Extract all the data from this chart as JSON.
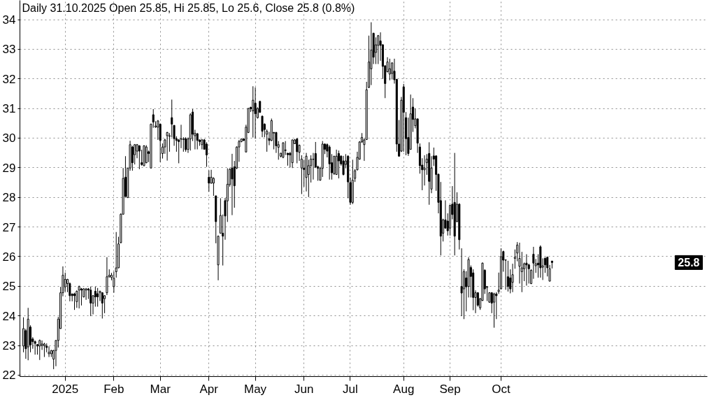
{
  "chart_data": {
    "type": "candlestick",
    "title": "Daily 31.10.2025 Open 25.85, Hi 25.85, Lo 25.6, Close 25.8 (0.8%)",
    "categories": [
      null,
      null,
      null,
      null,
      null,
      null,
      null,
      null,
      null,
      null,
      null,
      null,
      null,
      null,
      null,
      null,
      null,
      null,
      "2025",
      null,
      null,
      null,
      null,
      null,
      null,
      null,
      null,
      null,
      null,
      null,
      null,
      null,
      null,
      null,
      null,
      null,
      null,
      null,
      null,
      "Feb",
      null,
      null,
      null,
      null,
      null,
      null,
      null,
      null,
      null,
      null,
      null,
      null,
      null,
      null,
      null,
      null,
      null,
      null,
      null,
      "Mar",
      null,
      null,
      null,
      null,
      null,
      null,
      null,
      null,
      null,
      null,
      null,
      null,
      null,
      null,
      null,
      null,
      null,
      null,
      null,
      null,
      "Apr",
      null,
      null,
      null,
      null,
      null,
      null,
      null,
      null,
      null,
      null,
      null,
      null,
      null,
      null,
      null,
      null,
      null,
      null,
      null,
      "May",
      null,
      null,
      null,
      null,
      null,
      null,
      null,
      null,
      null,
      null,
      null,
      null,
      null,
      null,
      null,
      null,
      null,
      null,
      null,
      null,
      "Jun",
      null,
      null,
      null,
      null,
      null,
      null,
      null,
      null,
      null,
      null,
      null,
      null,
      null,
      null,
      null,
      null,
      null,
      null,
      null,
      "Jul",
      null,
      null,
      null,
      null,
      null,
      null,
      null,
      null,
      null,
      null,
      null,
      null,
      null,
      null,
      null,
      null,
      null,
      null,
      null,
      null,
      null,
      null,
      "Aug",
      null,
      null,
      null,
      null,
      null,
      null,
      null,
      null,
      null,
      null,
      null,
      null,
      null,
      null,
      null,
      null,
      null,
      null,
      null,
      "Sep",
      null,
      null,
      null,
      null,
      null,
      null,
      null,
      null,
      null,
      null,
      null,
      null,
      null,
      null,
      null,
      null,
      null,
      null,
      null,
      null,
      null,
      "Oct",
      null,
      null,
      null,
      null,
      null,
      null,
      null,
      null,
      null,
      null,
      null,
      null,
      null,
      null,
      null,
      null,
      null,
      null,
      null,
      null,
      null,
      null
    ],
    "ohlc": [
      [
        22.98,
        23.95,
        22.77,
        23.57
      ],
      [
        23.5,
        23.56,
        22.55,
        22.89
      ],
      [
        22.95,
        24.27,
        22.5,
        23.89
      ],
      [
        23.62,
        23.68,
        22.77,
        23.02
      ],
      [
        23.22,
        23.28,
        22.89,
        23.13
      ],
      [
        23.13,
        23.17,
        22.69,
        23.07
      ],
      [
        23.03,
        23.05,
        22.69,
        22.98
      ],
      [
        22.98,
        23.2,
        22.51,
        23.17
      ],
      [
        23.0,
        23.17,
        22.85,
        23.05
      ],
      [
        22.99,
        23.09,
        22.61,
        23.05
      ],
      [
        22.98,
        23.07,
        22.77,
        22.93
      ],
      [
        22.72,
        22.97,
        22.61,
        22.77
      ],
      [
        22.72,
        22.85,
        22.61,
        22.83
      ],
      [
        22.54,
        22.85,
        22.2,
        22.83
      ],
      [
        22.83,
        23.18,
        22.3,
        23.17
      ],
      [
        23.17,
        23.97,
        22.93,
        23.89
      ],
      [
        23.57,
        24.98,
        23.56,
        24.78
      ],
      [
        24.78,
        25.67,
        24.66,
        25.37
      ],
      [
        24.98,
        25.46,
        24.82,
        25.23
      ],
      [
        25.09,
        25.25,
        24.8,
        25.23
      ],
      [
        25.09,
        25.13,
        24.49,
        24.68
      ],
      [
        24.74,
        24.75,
        24.49,
        24.68
      ],
      [
        24.74,
        24.78,
        24.2,
        24.68
      ],
      [
        24.48,
        24.86,
        24.27,
        24.83
      ],
      [
        24.87,
        25.02,
        24.25,
        24.99
      ],
      [
        24.91,
        24.94,
        24.35,
        24.87
      ],
      [
        24.64,
        24.94,
        24.62,
        24.91
      ],
      [
        24.87,
        24.94,
        24.54,
        24.91
      ],
      [
        24.91,
        24.94,
        24.57,
        24.87
      ],
      [
        24.87,
        24.99,
        23.99,
        24.43
      ],
      [
        24.43,
        24.7,
        24.05,
        24.68
      ],
      [
        24.83,
        24.99,
        24.31,
        24.64
      ],
      [
        24.75,
        24.94,
        24.31,
        24.64
      ],
      [
        24.78,
        24.85,
        24.5,
        24.83
      ],
      [
        24.78,
        24.8,
        23.91,
        24.43
      ],
      [
        24.58,
        24.7,
        24.09,
        24.68
      ],
      [
        24.78,
        25.98,
        24.7,
        25.32
      ],
      [
        25.32,
        25.57,
        25.29,
        25.37
      ],
      [
        25.29,
        25.45,
        25.2,
        25.37
      ],
      [
        24.99,
        25.49,
        24.78,
        25.27
      ],
      [
        25.49,
        26.83,
        25.29,
        25.62
      ],
      [
        25.62,
        26.67,
        25.61,
        26.43
      ],
      [
        26.47,
        27.46,
        26.45,
        27.43
      ],
      [
        27.43,
        28.99,
        27.42,
        28.64
      ],
      [
        28.68,
        29.39,
        28.01,
        28.03
      ],
      [
        27.99,
        29.0,
        27.98,
        28.99
      ],
      [
        28.99,
        29.91,
        28.9,
        29.78
      ],
      [
        29.7,
        29.74,
        28.9,
        29.17
      ],
      [
        29.44,
        29.8,
        29.11,
        29.78
      ],
      [
        29.56,
        29.8,
        29.32,
        29.78
      ],
      [
        29.74,
        29.76,
        28.95,
        29.56
      ],
      [
        29.17,
        29.61,
        29.07,
        29.11
      ],
      [
        29.07,
        29.76,
        29.05,
        29.74
      ],
      [
        29.17,
        29.76,
        29.15,
        29.7
      ],
      [
        29.54,
        29.58,
        29.19,
        29.48
      ],
      [
        28.99,
        30.49,
        28.98,
        30.47
      ],
      [
        30.79,
        30.98,
        30.35,
        30.54
      ],
      [
        30.37,
        30.57,
        30.35,
        30.41
      ],
      [
        30.37,
        30.61,
        29.94,
        30.58
      ],
      [
        30.47,
        30.49,
        29.19,
        29.92
      ],
      [
        29.48,
        29.82,
        29.31,
        29.7
      ],
      [
        29.7,
        29.98,
        29.47,
        29.94
      ],
      [
        30.08,
        30.21,
        29.24,
        30.19
      ],
      [
        30.06,
        30.17,
        29.54,
        30.08
      ],
      [
        30.69,
        31.3,
        30.03,
        30.47
      ],
      [
        30.43,
        30.44,
        29.74,
        29.98
      ],
      [
        29.98,
        30.06,
        29.54,
        29.92
      ],
      [
        29.94,
        29.97,
        29.15,
        29.88
      ],
      [
        29.96,
        30.45,
        29.66,
        29.98
      ],
      [
        29.95,
        30.03,
        29.54,
        29.97
      ],
      [
        29.98,
        30.03,
        29.54,
        29.61
      ],
      [
        29.62,
        30.02,
        29.5,
        29.97
      ],
      [
        29.97,
        30.84,
        29.58,
        30.79
      ],
      [
        30.88,
        30.98,
        29.9,
        30.13
      ],
      [
        30.08,
        30.28,
        29.62,
        30.16
      ],
      [
        30.15,
        30.17,
        29.62,
        29.92
      ],
      [
        29.94,
        29.95,
        29.74,
        29.88
      ],
      [
        29.78,
        29.97,
        29.62,
        29.94
      ],
      [
        29.94,
        29.97,
        29.61,
        29.62
      ],
      [
        29.8,
        29.86,
        29.03,
        29.43
      ],
      [
        28.68,
        28.91,
        28.19,
        28.48
      ],
      [
        28.48,
        28.93,
        28.46,
        28.68
      ],
      [
        28.48,
        28.68,
        28.05,
        28.64
      ],
      [
        28.05,
        28.06,
        26.45,
        27.18
      ],
      [
        25.72,
        26.71,
        25.2,
        26.69
      ],
      [
        26.79,
        27.97,
        26.79,
        27.39
      ],
      [
        26.79,
        27.42,
        25.7,
        26.69
      ],
      [
        27.89,
        27.98,
        26.57,
        27.37
      ],
      [
        27.88,
        28.98,
        27.17,
        28.44
      ],
      [
        28.43,
        28.98,
        28.36,
        28.95
      ],
      [
        28.99,
        29.47,
        27.4,
        28.62
      ],
      [
        29.03,
        29.23,
        27.65,
        28.39
      ],
      [
        28.99,
        29.72,
        28.95,
        29.7
      ],
      [
        29.7,
        29.94,
        29.2,
        29.88
      ],
      [
        29.88,
        29.98,
        29.86,
        29.97
      ],
      [
        29.97,
        29.98,
        29.9,
        29.92
      ],
      [
        29.53,
        30.45,
        29.52,
        30.37
      ],
      [
        30.19,
        31.02,
        30.17,
        31.0
      ],
      [
        31.04,
        31.06,
        30.88,
        30.99
      ],
      [
        30.92,
        31.75,
        30.02,
        31.28
      ],
      [
        31.18,
        31.71,
        29.98,
        30.82
      ],
      [
        30.69,
        31.04,
        30.66,
        31.0
      ],
      [
        31.24,
        31.26,
        30.85,
        30.87
      ],
      [
        30.74,
        30.76,
        30.03,
        30.23
      ],
      [
        30.47,
        30.5,
        30.03,
        30.29
      ],
      [
        30.13,
        30.29,
        29.54,
        30.23
      ],
      [
        29.98,
        30.21,
        29.76,
        29.92
      ],
      [
        29.92,
        30.66,
        29.9,
        30.59
      ],
      [
        30.17,
        30.21,
        29.62,
        30.19
      ],
      [
        30.19,
        30.21,
        29.5,
        29.74
      ],
      [
        29.69,
        29.9,
        29.27,
        29.78
      ],
      [
        29.39,
        29.5,
        29.35,
        29.49
      ],
      [
        29.35,
        29.86,
        29.32,
        29.84
      ],
      [
        29.58,
        29.9,
        29.43,
        29.6
      ],
      [
        29.49,
        29.5,
        29.07,
        29.44
      ],
      [
        29.49,
        29.53,
        29.01,
        29.43
      ],
      [
        29.17,
        29.95,
        28.99,
        29.94
      ],
      [
        29.81,
        29.97,
        29.8,
        29.94
      ],
      [
        29.97,
        30.0,
        29.15,
        29.54
      ],
      [
        29.52,
        29.78,
        29.23,
        29.76
      ],
      [
        28.99,
        29.42,
        28.11,
        29.29
      ],
      [
        28.99,
        29.27,
        28.36,
        28.94
      ],
      [
        28.67,
        29.5,
        28.2,
        29.39
      ],
      [
        28.77,
        29.27,
        28.01,
        29.07
      ],
      [
        29.07,
        29.42,
        28.5,
        29.29
      ],
      [
        29.28,
        29.5,
        28.6,
        29.29
      ],
      [
        29.48,
        29.87,
        28.99,
        29.02
      ],
      [
        29.03,
        29.07,
        28.56,
        28.98
      ],
      [
        28.58,
        29.03,
        28.56,
        28.98
      ],
      [
        28.98,
        29.9,
        28.69,
        29.8
      ],
      [
        29.8,
        29.82,
        29.46,
        29.62
      ],
      [
        29.78,
        29.82,
        29.35,
        29.56
      ],
      [
        29.7,
        29.76,
        28.6,
        29.13
      ],
      [
        29.17,
        29.46,
        28.6,
        28.83
      ],
      [
        28.8,
        29.4,
        28.76,
        29.39
      ],
      [
        28.77,
        29.61,
        28.76,
        29.39
      ],
      [
        29.48,
        29.58,
        28.64,
        29.23
      ],
      [
        29.39,
        29.42,
        29.07,
        29.13
      ],
      [
        29.23,
        29.4,
        28.74,
        28.77
      ],
      [
        29.11,
        29.46,
        28.98,
        29.23
      ],
      [
        29.39,
        29.42,
        27.97,
        28.52
      ],
      [
        28.5,
        28.67,
        27.75,
        27.83
      ],
      [
        27.83,
        29.27,
        27.77,
        28.58
      ],
      [
        28.64,
        28.95,
        28.52,
        28.9
      ],
      [
        28.93,
        29.54,
        28.91,
        29.35
      ],
      [
        29.29,
        29.9,
        29.27,
        29.87
      ],
      [
        29.87,
        30.17,
        29.84,
        30.02
      ],
      [
        29.78,
        29.98,
        29.23,
        29.94
      ],
      [
        29.95,
        31.9,
        29.94,
        31.63
      ],
      [
        31.71,
        33.46,
        31.69,
        32.57
      ],
      [
        32.34,
        33.91,
        31.79,
        32.97
      ],
      [
        33.54,
        33.56,
        32.5,
        32.73
      ],
      [
        32.89,
        33.4,
        32.5,
        33.15
      ],
      [
        33.13,
        33.48,
        32.5,
        33.46
      ],
      [
        33.28,
        33.57,
        32.61,
        33.13
      ],
      [
        33.15,
        33.17,
        32.0,
        32.42
      ],
      [
        32.44,
        32.46,
        31.35,
        31.84
      ],
      [
        32.24,
        32.73,
        32.22,
        32.57
      ],
      [
        32.16,
        32.68,
        31.95,
        32.34
      ],
      [
        32.18,
        32.55,
        31.98,
        32.54
      ],
      [
        32.26,
        32.68,
        31.84,
        31.97
      ],
      [
        31.98,
        32.0,
        29.54,
        29.8
      ],
      [
        29.8,
        30.61,
        29.37,
        29.39
      ],
      [
        29.56,
        31.39,
        29.53,
        31.28
      ],
      [
        31.73,
        31.83,
        29.54,
        30.87
      ],
      [
        30.69,
        30.88,
        29.42,
        29.98
      ],
      [
        30.02,
        30.69,
        29.4,
        29.48
      ],
      [
        29.62,
        31.47,
        29.61,
        30.82
      ],
      [
        31.05,
        31.35,
        30.21,
        30.63
      ],
      [
        30.42,
        31.0,
        30.33,
        30.65
      ],
      [
        30.65,
        30.66,
        29.5,
        29.83
      ],
      [
        29.7,
        29.82,
        28.8,
        29.07
      ],
      [
        29.09,
        29.32,
        28.24,
        28.93
      ],
      [
        28.93,
        29.42,
        28.4,
        28.99
      ],
      [
        29.17,
        29.46,
        28.76,
        29.29
      ],
      [
        29.48,
        29.86,
        27.75,
        28.54
      ],
      [
        28.28,
        29.39,
        28.14,
        28.99
      ],
      [
        29.4,
        29.68,
        29.06,
        29.29
      ],
      [
        29.4,
        29.42,
        28.22,
        28.77
      ],
      [
        28.78,
        28.8,
        27.46,
        27.83
      ],
      [
        27.89,
        28.52,
        26.04,
        26.69
      ],
      [
        26.79,
        27.28,
        26.51,
        27.24
      ],
      [
        27.24,
        27.9,
        26.95,
        26.96
      ],
      [
        27.2,
        27.46,
        26.71,
        26.87
      ],
      [
        26.96,
        27.75,
        26.71,
        27.73
      ],
      [
        27.77,
        28.38,
        27.26,
        27.42
      ],
      [
        27.83,
        29.5,
        26.04,
        26.69
      ],
      [
        27.18,
        28.17,
        27.17,
        27.77
      ],
      [
        27.77,
        27.8,
        26.24,
        26.57
      ],
      [
        24.99,
        26.28,
        23.99,
        24.77
      ],
      [
        24.91,
        25.57,
        23.89,
        25.49
      ],
      [
        25.28,
        25.51,
        24.15,
        24.98
      ],
      [
        24.99,
        25.98,
        24.62,
        25.9
      ],
      [
        25.63,
        25.7,
        24.62,
        25.33
      ],
      [
        25.45,
        25.57,
        24.19,
        24.62
      ],
      [
        24.62,
        24.86,
        24.09,
        24.78
      ],
      [
        24.78,
        24.8,
        24.31,
        24.36
      ],
      [
        24.27,
        24.6,
        24.2,
        24.58
      ],
      [
        24.52,
        25.8,
        24.5,
        25.78
      ],
      [
        25.54,
        25.57,
        24.74,
        24.91
      ],
      [
        24.96,
        24.99,
        24.5,
        24.99
      ],
      [
        24.46,
        24.8,
        24.44,
        24.78
      ],
      [
        24.78,
        24.8,
        24.09,
        24.43
      ],
      [
        24.46,
        24.78,
        23.6,
        24.74
      ],
      [
        24.74,
        24.8,
        23.89,
        24.68
      ],
      [
        24.82,
        25.46,
        24.74,
        24.87
      ],
      [
        24.91,
        26.28,
        24.9,
        26.0
      ],
      [
        26.17,
        26.2,
        25.49,
        25.88
      ],
      [
        25.88,
        25.9,
        24.88,
        25.89
      ],
      [
        25.32,
        25.86,
        24.82,
        24.99
      ],
      [
        25.28,
        25.57,
        24.76,
        24.91
      ],
      [
        25.13,
        25.76,
        24.8,
        25.39
      ],
      [
        25.94,
        26.24,
        25.59,
        25.98
      ],
      [
        26.12,
        26.49,
        25.84,
        26.39
      ],
      [
        25.67,
        26.47,
        25.09,
        25.94
      ],
      [
        25.49,
        26.16,
        24.8,
        25.62
      ],
      [
        25.59,
        25.8,
        25.17,
        25.76
      ],
      [
        25.78,
        26.08,
        25.02,
        25.72
      ],
      [
        25.72,
        25.76,
        25.09,
        25.59
      ],
      [
        25.09,
        25.57,
        25.07,
        25.54
      ],
      [
        26.08,
        26.33,
        25.25,
        25.78
      ],
      [
        25.69,
        25.92,
        25.45,
        25.76
      ],
      [
        25.78,
        26.08,
        25.29,
        25.72
      ],
      [
        26.33,
        26.38,
        25.29,
        25.62
      ],
      [
        25.64,
        25.94,
        25.21,
        25.69
      ],
      [
        25.94,
        25.98,
        25.45,
        25.72
      ],
      [
        25.98,
        26.0,
        25.33,
        25.62
      ],
      [
        25.17,
        25.72,
        25.17,
        25.59
      ],
      [
        25.85,
        25.85,
        25.6,
        25.8
      ]
    ],
    "ylim": [
      21.95,
      34.65
    ],
    "yticks": [
      22,
      23,
      24,
      25,
      26,
      27,
      28,
      29,
      30,
      31,
      32,
      33,
      34
    ],
    "grid": true,
    "annotations": [
      "25.8"
    ]
  }
}
